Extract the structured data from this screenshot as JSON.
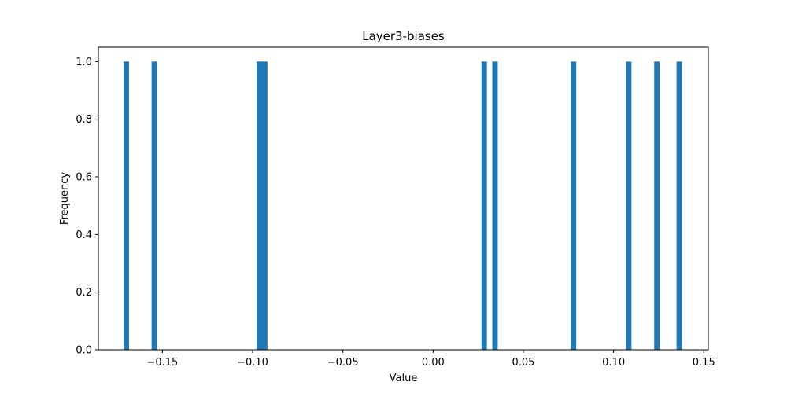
{
  "chart_data": {
    "type": "bar",
    "title": "Layer3-biases",
    "xlabel": "Value",
    "ylabel": "Frequency",
    "xlim": [
      -0.1855,
      0.1525
    ],
    "ylim": [
      0.0,
      1.05
    ],
    "x_ticks": [
      -0.15,
      -0.1,
      -0.05,
      0.0,
      0.05,
      0.1,
      0.15
    ],
    "x_tick_labels": [
      "−0.15",
      "−0.10",
      "−0.05",
      "0.00",
      "0.05",
      "0.10",
      "0.15"
    ],
    "y_ticks": [
      0.0,
      0.2,
      0.4,
      0.6,
      0.8,
      1.0
    ],
    "y_tick_labels": [
      "0.0",
      "0.2",
      "0.4",
      "0.6",
      "0.8",
      "1.0"
    ],
    "bar_color": "#1f77b4",
    "grid": false,
    "bins": [
      {
        "start": -0.1715,
        "end": -0.1685,
        "value": 1
      },
      {
        "start": -0.156,
        "end": -0.153,
        "value": 1
      },
      {
        "start": -0.0978,
        "end": -0.0948,
        "value": 1
      },
      {
        "start": -0.0948,
        "end": -0.0918,
        "value": 1
      },
      {
        "start": 0.0268,
        "end": 0.0298,
        "value": 1
      },
      {
        "start": 0.0328,
        "end": 0.0358,
        "value": 1
      },
      {
        "start": 0.0763,
        "end": 0.0793,
        "value": 1
      },
      {
        "start": 0.1069,
        "end": 0.1099,
        "value": 1
      },
      {
        "start": 0.1225,
        "end": 0.1255,
        "value": 1
      },
      {
        "start": 0.1349,
        "end": 0.1379,
        "value": 1
      }
    ]
  }
}
